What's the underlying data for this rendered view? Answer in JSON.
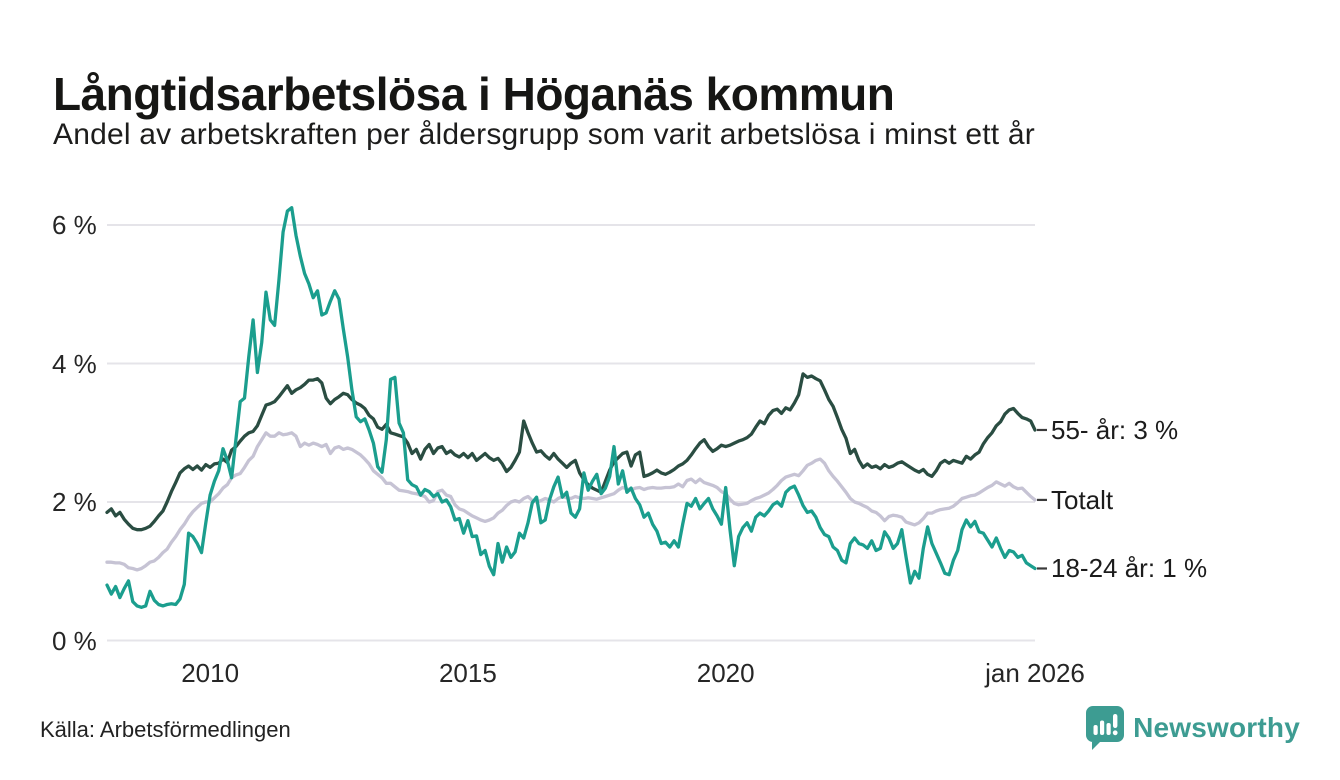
{
  "header": {
    "title": "Långtidsarbetslösa i Höganäs kommun",
    "subtitle": "Andel av arbetskraften per åldersgrupp som varit arbetslösa i minst ett år"
  },
  "footer": {
    "source": "Källa: Arbetsförmedlingen",
    "brand": "Newsworthy",
    "brand_color": "#3d9c92"
  },
  "colors": {
    "grid": "#e5e4e9",
    "tick_text": "#262626",
    "end_label_dash": "#3a3a3a"
  },
  "chart_data": {
    "type": "line",
    "x_start": 2008,
    "x_step_per_year": 12,
    "x_end": 2026,
    "ylim": [
      0,
      6.6
    ],
    "grid": "horizontal",
    "legend_position": "right-end-labels",
    "y_ticks": [
      {
        "label": "6 %",
        "value": 6
      },
      {
        "label": "4 %",
        "value": 4
      },
      {
        "label": "2 %",
        "value": 2
      },
      {
        "label": "0 %",
        "value": 0
      }
    ],
    "x_ticks": [
      {
        "label": "2010",
        "year": 2010
      },
      {
        "label": "2015",
        "year": 2015
      },
      {
        "label": "2020",
        "year": 2020
      },
      {
        "label": "jan 2026",
        "year": 2026
      }
    ],
    "series": [
      {
        "name": "Totalt",
        "end_label": "Totalt",
        "color": "#c6c3d4",
        "values": [
          1.13,
          1.13,
          1.12,
          1.12,
          1.1,
          1.05,
          1.04,
          1.02,
          1.04,
          1.08,
          1.13,
          1.15,
          1.2,
          1.27,
          1.32,
          1.42,
          1.5,
          1.6,
          1.68,
          1.78,
          1.86,
          1.92,
          1.98,
          2.0,
          2.0,
          2.06,
          2.12,
          2.2,
          2.25,
          2.35,
          2.39,
          2.41,
          2.5,
          2.6,
          2.66,
          2.8,
          2.9,
          3.0,
          2.95,
          2.95,
          3.0,
          2.97,
          2.98,
          3.0,
          2.95,
          2.8,
          2.85,
          2.82,
          2.85,
          2.83,
          2.8,
          2.83,
          2.7,
          2.78,
          2.8,
          2.76,
          2.78,
          2.76,
          2.72,
          2.68,
          2.62,
          2.55,
          2.45,
          2.4,
          2.35,
          2.27,
          2.27,
          2.22,
          2.17,
          2.16,
          2.15,
          2.13,
          2.12,
          2.1,
          2.08,
          2.0,
          2.02,
          2.15,
          2.17,
          2.1,
          2.08,
          1.96,
          1.9,
          1.88,
          1.84,
          1.8,
          1.77,
          1.74,
          1.72,
          1.74,
          1.77,
          1.84,
          1.88,
          1.95,
          2.0,
          2.02,
          2.0,
          2.05,
          2.08,
          2.02,
          2.0,
          2.02,
          2.05,
          2.03,
          2.0,
          2.05,
          2.08,
          2.06,
          2.05,
          2.08,
          2.06,
          2.05,
          2.06,
          2.05,
          2.04,
          2.06,
          2.08,
          2.1,
          2.12,
          2.17,
          2.21,
          2.19,
          2.17,
          2.2,
          2.21,
          2.18,
          2.2,
          2.21,
          2.2,
          2.2,
          2.21,
          2.21,
          2.22,
          2.26,
          2.22,
          2.31,
          2.33,
          2.28,
          2.33,
          2.28,
          2.26,
          2.24,
          2.21,
          2.15,
          2.12,
          2.04,
          1.98,
          1.96,
          1.97,
          1.98,
          2.02,
          2.05,
          2.07,
          2.1,
          2.13,
          2.18,
          2.24,
          2.31,
          2.36,
          2.38,
          2.4,
          2.38,
          2.45,
          2.53,
          2.56,
          2.6,
          2.62,
          2.56,
          2.45,
          2.37,
          2.3,
          2.22,
          2.14,
          2.05,
          2.0,
          1.98,
          1.95,
          1.92,
          1.87,
          1.85,
          1.8,
          1.73,
          1.79,
          1.81,
          1.8,
          1.78,
          1.71,
          1.69,
          1.67,
          1.7,
          1.76,
          1.84,
          1.84,
          1.87,
          1.89,
          1.9,
          1.91,
          1.94,
          1.99,
          2.05,
          2.07,
          2.09,
          2.1,
          2.13,
          2.17,
          2.21,
          2.24,
          2.29,
          2.26,
          2.23,
          2.27,
          2.22,
          2.19,
          2.2,
          2.14,
          2.08,
          2.03
        ]
      },
      {
        "name": "55- år",
        "end_label": "55- år: 3 %",
        "color": "#2a4d42",
        "values": [
          1.85,
          1.9,
          1.8,
          1.85,
          1.75,
          1.68,
          1.62,
          1.6,
          1.6,
          1.62,
          1.65,
          1.72,
          1.8,
          1.87,
          2.0,
          2.15,
          2.28,
          2.42,
          2.48,
          2.52,
          2.47,
          2.52,
          2.46,
          2.54,
          2.5,
          2.55,
          2.56,
          2.62,
          2.57,
          2.75,
          2.8,
          2.88,
          2.95,
          3.0,
          3.02,
          3.1,
          3.25,
          3.4,
          3.42,
          3.45,
          3.52,
          3.6,
          3.68,
          3.57,
          3.62,
          3.65,
          3.7,
          3.76,
          3.76,
          3.78,
          3.72,
          3.5,
          3.42,
          3.48,
          3.52,
          3.57,
          3.55,
          3.48,
          3.43,
          3.4,
          3.35,
          3.25,
          3.2,
          3.08,
          3.05,
          3.12,
          3.0,
          2.98,
          2.96,
          2.94,
          2.85,
          2.7,
          2.76,
          2.62,
          2.76,
          2.83,
          2.7,
          2.78,
          2.8,
          2.7,
          2.74,
          2.68,
          2.65,
          2.7,
          2.64,
          2.7,
          2.6,
          2.65,
          2.7,
          2.64,
          2.6,
          2.63,
          2.55,
          2.44,
          2.5,
          2.6,
          2.72,
          3.17,
          3.0,
          2.85,
          2.72,
          2.74,
          2.67,
          2.62,
          2.7,
          2.62,
          2.56,
          2.5,
          2.56,
          2.6,
          2.42,
          2.32,
          2.25,
          2.2,
          2.17,
          2.14,
          2.3,
          2.46,
          2.58,
          2.64,
          2.7,
          2.72,
          2.52,
          2.68,
          2.72,
          2.37,
          2.39,
          2.42,
          2.46,
          2.42,
          2.4,
          2.43,
          2.47,
          2.52,
          2.55,
          2.6,
          2.68,
          2.77,
          2.85,
          2.9,
          2.8,
          2.73,
          2.77,
          2.82,
          2.8,
          2.82,
          2.85,
          2.88,
          2.9,
          2.93,
          2.98,
          3.08,
          3.17,
          3.13,
          3.25,
          3.32,
          3.34,
          3.28,
          3.36,
          3.33,
          3.43,
          3.55,
          3.85,
          3.8,
          3.82,
          3.78,
          3.75,
          3.62,
          3.48,
          3.38,
          3.22,
          3.05,
          2.92,
          2.7,
          2.76,
          2.6,
          2.5,
          2.55,
          2.5,
          2.52,
          2.48,
          2.54,
          2.5,
          2.52,
          2.56,
          2.58,
          2.54,
          2.5,
          2.46,
          2.43,
          2.47,
          2.4,
          2.37,
          2.45,
          2.56,
          2.6,
          2.56,
          2.6,
          2.58,
          2.56,
          2.66,
          2.62,
          2.68,
          2.72,
          2.84,
          2.93,
          3.0,
          3.1,
          3.16,
          3.27,
          3.33,
          3.35,
          3.28,
          3.22,
          3.2,
          3.17,
          3.04
        ]
      },
      {
        "name": "18-24 år",
        "end_label": "18-24 år: 1 %",
        "color": "#1b9e8e",
        "values": [
          0.8,
          0.67,
          0.78,
          0.62,
          0.75,
          0.86,
          0.56,
          0.5,
          0.48,
          0.5,
          0.71,
          0.58,
          0.52,
          0.5,
          0.52,
          0.53,
          0.52,
          0.6,
          0.81,
          1.55,
          1.5,
          1.4,
          1.27,
          1.7,
          2.1,
          2.3,
          2.45,
          2.77,
          2.6,
          2.35,
          2.9,
          3.45,
          3.5,
          4.1,
          4.63,
          3.87,
          4.3,
          5.03,
          4.63,
          4.55,
          5.2,
          5.9,
          6.2,
          6.25,
          5.85,
          5.55,
          5.3,
          5.15,
          4.95,
          5.05,
          4.7,
          4.73,
          4.9,
          5.05,
          4.93,
          4.5,
          4.1,
          3.62,
          3.23,
          3.16,
          3.2,
          3.04,
          2.85,
          2.51,
          2.43,
          2.9,
          3.77,
          3.8,
          3.14,
          3.0,
          2.32,
          2.25,
          2.22,
          2.1,
          2.18,
          2.15,
          2.08,
          2.12,
          2.0,
          2.03,
          1.93,
          1.74,
          1.76,
          1.55,
          1.73,
          1.5,
          1.51,
          1.24,
          1.3,
          1.07,
          0.95,
          1.4,
          1.13,
          1.35,
          1.2,
          1.28,
          1.55,
          1.48,
          1.7,
          1.99,
          2.07,
          1.7,
          1.74,
          2.03,
          2.22,
          2.36,
          2.07,
          2.14,
          1.84,
          1.78,
          1.9,
          2.42,
          2.17,
          2.3,
          2.4,
          2.12,
          2.2,
          2.37,
          2.8,
          2.26,
          2.45,
          2.14,
          2.2,
          2.05,
          1.96,
          1.78,
          1.84,
          1.68,
          1.58,
          1.4,
          1.42,
          1.35,
          1.44,
          1.35,
          1.68,
          1.98,
          1.94,
          2.05,
          1.9,
          1.98,
          2.05,
          1.9,
          1.8,
          1.68,
          2.21,
          1.6,
          1.08,
          1.5,
          1.63,
          1.7,
          1.58,
          1.78,
          1.84,
          1.8,
          1.87,
          1.96,
          2.0,
          1.94,
          2.14,
          2.2,
          2.23,
          2.1,
          1.95,
          1.85,
          1.87,
          1.78,
          1.63,
          1.53,
          1.5,
          1.35,
          1.3,
          1.16,
          1.12,
          1.4,
          1.48,
          1.4,
          1.38,
          1.33,
          1.44,
          1.3,
          1.33,
          1.57,
          1.48,
          1.33,
          1.4,
          1.6,
          1.2,
          0.83,
          1.0,
          0.9,
          1.33,
          1.64,
          1.4,
          1.26,
          1.12,
          0.97,
          0.95,
          1.16,
          1.3,
          1.6,
          1.74,
          1.64,
          1.72,
          1.57,
          1.55,
          1.45,
          1.35,
          1.48,
          1.33,
          1.2,
          1.3,
          1.28,
          1.2,
          1.23,
          1.12,
          1.08,
          1.04
        ]
      }
    ]
  }
}
